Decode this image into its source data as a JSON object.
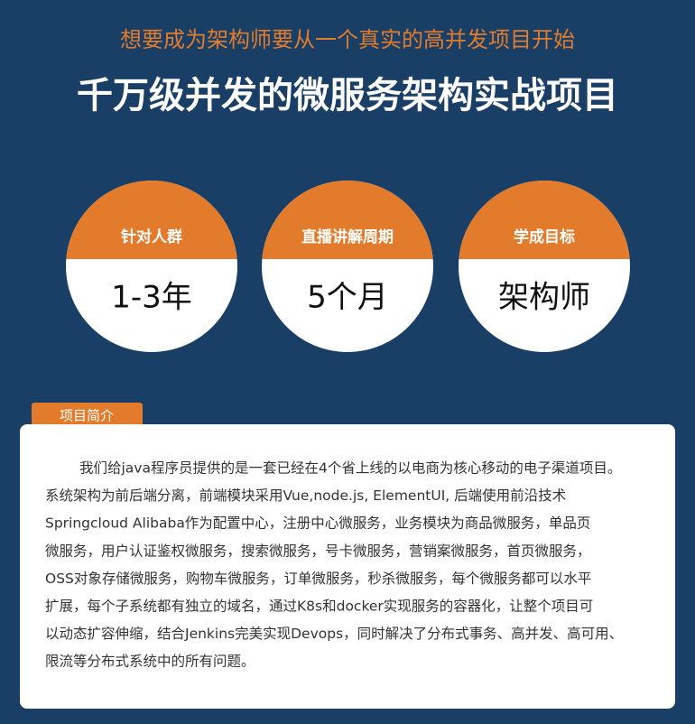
{
  "header": {
    "subtitle": "想要成为架构师要从一个真实的高并发项目开始",
    "title": "千万级并发的微服务架构实战项目"
  },
  "stats": [
    {
      "label": "针对人群",
      "value": "1-3年"
    },
    {
      "label": "直播讲解周期",
      "value": "5个月"
    },
    {
      "label": "学成目标",
      "value": "架构师"
    }
  ],
  "intro": {
    "tab": "项目简介",
    "lines": [
      "我们给java程序员提供的是一套已经在4个省上线的以电商为核心移动的电子渠道项目。",
      "系统架构为前后端分离，前端模块采用Vue,node.js, ElementUI, 后端使用前沿技术",
      "Springcloud Alibaba作为配置中心，注册中心微服务，业务模块为商品微服务，单品页",
      "微服务，用户认证鉴权微服务，搜索微服务，号卡微服务，营销案微服务，首页微服务，",
      "OSS对象存储微服务，购物车微服务，订单微服务，秒杀微服务，每个微服务都可以水平",
      "扩展，每个子系统都有独立的域名，通过K8s和docker实现服务的容器化，让整个项目可",
      "以动态扩容伸缩，结合Jenkins完美实现Devops，同时解决了分布式事务、高并发、高可用、",
      "限流等分布式系统中的所有问题。"
    ]
  }
}
